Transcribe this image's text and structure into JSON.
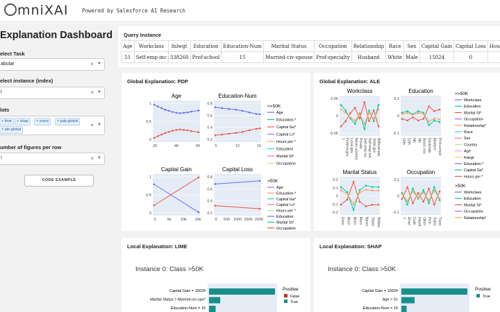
{
  "header": {
    "logo": "mniXAI",
    "powered_by": "Powered by Salesforce AI Research"
  },
  "sidebar": {
    "title": "Explanation Dashboard",
    "select_task": {
      "label": "elect Task",
      "value": "abular"
    },
    "select_instance": {
      "label": "elect instance (index)",
      "value": "l"
    },
    "plots": {
      "label": "lots",
      "tags": [
        "lime",
        "shap",
        "mace",
        "pdp:global",
        "ale:global"
      ]
    },
    "num_figures": {
      "label": "umber of figures per row",
      "value": "!"
    },
    "code_button": "CODE EXAMPLE"
  },
  "query": {
    "title": "Query Instance",
    "headers": [
      "Age",
      "Workclass",
      "fnlwgt",
      "Education",
      "Education-Num",
      "Marital Status",
      "Occupation",
      "Relationship",
      "Race",
      "Sex",
      "Capital Gain",
      "Capital Loss",
      "Hou"
    ],
    "row": [
      "51",
      "Self-emp-inc",
      "338260",
      "Prof-school",
      "15",
      "Married-civ-spouse",
      "Prof-specialty",
      "Husband",
      "White",
      "Male",
      "15024",
      "0",
      ""
    ]
  },
  "pdp": {
    "title": "Global Explanation: PDP",
    "legend_le": "<=50K",
    "legend_gt": ">50K",
    "legend_items": [
      "Age",
      "Education-*",
      "Capital Ga*",
      "Capital Lo*",
      "Hours per *",
      "Education",
      "Marital St*",
      "Occupation"
    ],
    "colors": [
      "#636efa",
      "#00cc96",
      "#ef553b",
      "#ab63fa",
      "#ffa15a",
      "#19d3f3",
      "#ff6692",
      "#b6e880"
    ],
    "charts": [
      {
        "title": "Age",
        "xticks": [
          "20",
          "40",
          "60"
        ],
        "yticks": [
          "1",
          "0.5",
          "0"
        ],
        "x": [
          20,
          25,
          30,
          35,
          40,
          45,
          50,
          55,
          60,
          65,
          70,
          80
        ],
        "series_le": [
          0.93,
          0.88,
          0.84,
          0.8,
          0.77,
          0.74,
          0.72,
          0.71,
          0.72,
          0.73,
          0.75,
          0.78
        ],
        "series_gt": [
          0.07,
          0.12,
          0.16,
          0.2,
          0.23,
          0.26,
          0.28,
          0.29,
          0.28,
          0.27,
          0.25,
          0.22
        ]
      },
      {
        "title": "Education-Num",
        "xticks": [
          "5",
          "10",
          "15"
        ],
        "yticks": [
          "0.8",
          "0.6",
          "0.4",
          "0.2"
        ],
        "x": [
          3,
          5,
          7,
          9,
          11,
          13,
          15,
          16
        ],
        "series_le": [
          0.86,
          0.84,
          0.82,
          0.8,
          0.77,
          0.73,
          0.69,
          0.68
        ],
        "series_gt": [
          0.14,
          0.16,
          0.18,
          0.2,
          0.23,
          0.27,
          0.31,
          0.32
        ]
      },
      {
        "title": "Capital Gain",
        "xticks": [
          "0",
          "5k",
          "10k",
          "15k"
        ],
        "yticks": [
          "1",
          "0.5",
          "0"
        ],
        "x": [
          0,
          15024
        ],
        "series_le": [
          0.77,
          0.05
        ],
        "series_gt": [
          0.23,
          0.95
        ]
      },
      {
        "title": "Capital Loss",
        "xticks": [
          "0",
          "500",
          "1000",
          "1500",
          "2000"
        ],
        "yticks": [
          "0.8",
          "0.6",
          "0.4",
          "0.2"
        ],
        "x": [
          0,
          2000
        ],
        "series_le": [
          0.78,
          0.86
        ],
        "series_gt": [
          0.22,
          0.14
        ]
      }
    ]
  },
  "ale": {
    "title": "Global Explanation: ALE",
    "legend_le": "<=50K",
    "legend_gt": ">50K",
    "legend_items_le": [
      "Workclass",
      "Education",
      "Marital St*",
      "Occupation",
      "Relationship*",
      "Race",
      "Sex",
      "Country",
      "Age",
      "fnlwgt",
      "Education-*",
      "Capital Ga*",
      "Hours per *"
    ],
    "legend_items_gt": [
      "Workclass",
      "Education",
      "Marital St*",
      "Occupation",
      "Relationship*"
    ],
    "colors": [
      "#636efa",
      "#00cc96",
      "#ef553b",
      "#ab63fa",
      "#ffa15a",
      "#19d3f3",
      "#ff6692",
      "#b6e880",
      "#ff97ff",
      "#fecb52",
      "#636efa",
      "#00cc96",
      "#ef553b"
    ],
    "charts": [
      {
        "title": "Workclass",
        "yticks": [
          "0.05",
          "0",
          "-0.05"
        ],
        "xlabels": [
          "?",
          "Federal-gov",
          "Local-gov",
          "Never-worked",
          "Private",
          "Self-emp-inc",
          "Self-emp-not",
          "State-gov",
          "Without-pay"
        ],
        "series_le": [
          0.04,
          0.02,
          -0.01,
          -0.03,
          0.01,
          -0.05,
          0.02,
          -0.02,
          0.04
        ],
        "series_gt": [
          -0.04,
          -0.02,
          0.01,
          0.03,
          -0.01,
          0.05,
          -0.02,
          0.02,
          -0.04
        ]
      },
      {
        "title": "Education",
        "yticks": [
          "0.1",
          "0",
          "-0.1"
        ],
        "xlabels": [
          "10th",
          "12th",
          "5th",
          "9th",
          "Assoc-voc",
          "Doctorate",
          "Masters",
          "Prof-school"
        ],
        "series_le": [
          0.02,
          0.03,
          0.01,
          0.03,
          0.02,
          -0.06,
          -0.03,
          -0.04
        ],
        "series_gt": [
          -0.02,
          -0.03,
          -0.01,
          -0.03,
          -0.02,
          0.06,
          0.03,
          0.04
        ]
      },
      {
        "title": "Marital Status",
        "yticks": [
          "0.2",
          "0.1",
          "0",
          "-0.1",
          "-0.2"
        ],
        "xlabels": [
          "Divor",
          "Marri",
          "Marri",
          "Marri",
          "Never",
          "Separ",
          "Widow"
        ],
        "series_le": [
          0.12,
          0.05,
          -0.19,
          0.08,
          0.14,
          0.12,
          0.12
        ],
        "series_gt": [
          -0.12,
          -0.05,
          0.19,
          -0.08,
          -0.14,
          -0.12,
          -0.12
        ]
      },
      {
        "title": "Occupation",
        "yticks": [
          "0.1",
          "0",
          "-0.1"
        ],
        "xlabels": [
          "?",
          "Arme",
          "Craft",
          "Handl",
          "Other",
          "Prof-",
          "Sales",
          "Trans"
        ],
        "series_le": [
          0.02,
          -0.06,
          0.05,
          -0.02,
          0.04,
          -0.05,
          0.06,
          -0.03
        ],
        "series_gt": [
          -0.02,
          0.06,
          -0.05,
          0.02,
          -0.04,
          0.05,
          -0.06,
          0.03
        ]
      }
    ]
  },
  "lime": {
    "title": "Local Explanation: LIME",
    "subtitle": "Instance 0: Class >50K",
    "legend_title": "Positive",
    "legend": [
      "False",
      "True"
    ],
    "legend_colors": [
      "#d62728",
      "#1a8f8a"
    ],
    "bars": [
      {
        "label": "Capital Gain = 15024",
        "value": 1.0
      },
      {
        "label": "Marital Status = Married-civ-spo*",
        "value": 0.17
      },
      {
        "label": "Education-Num = 15",
        "value": 0.1
      }
    ]
  },
  "shap": {
    "title": "Local Explanation: SHAP",
    "subtitle": "Instance 0: Class >50K",
    "legend_title": "Positive",
    "legend": [
      "True"
    ],
    "legend_colors": [
      "#1a8f8a"
    ],
    "bars": [
      {
        "label": "Capital Gain = 15024",
        "value": 1.0
      },
      {
        "label": "Age = 51",
        "value": 0.2
      },
      {
        "label": "Education-Num = 15",
        "value": 0.08
      }
    ]
  }
}
